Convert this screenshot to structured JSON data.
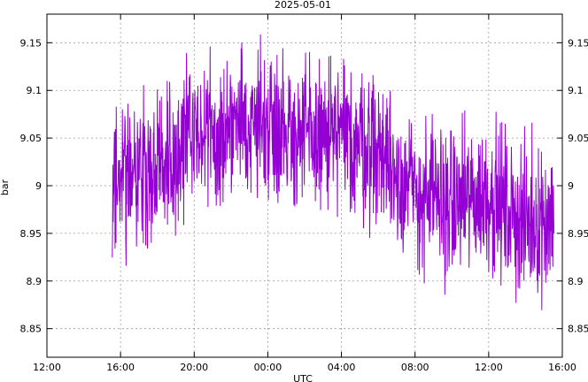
{
  "chart_data": {
    "type": "line",
    "title": "2025-05-01",
    "xlabel": "UTC",
    "ylabel": "bar",
    "x_ticks": [
      "12:00",
      "16:00",
      "20:00",
      "00:00",
      "04:00",
      "08:00",
      "12:00",
      "16:00"
    ],
    "x_tick_hours": [
      12,
      16,
      20,
      24,
      28,
      32,
      36,
      40
    ],
    "xlim_hours": [
      12,
      40
    ],
    "y_ticks": [
      8.85,
      8.9,
      8.95,
      9,
      9.05,
      9.1,
      9.15
    ],
    "y_tick_labels": [
      "8.85",
      "8.9",
      "8.95",
      "9",
      "9.05",
      "9.1",
      "9.15"
    ],
    "ylim": [
      8.82,
      9.18
    ],
    "grid": true,
    "right_axis_labels": true,
    "series": [
      {
        "color": "#9400d3",
        "x_start_hour": 15.55,
        "x_end_hour": 39.55,
        "step_minutes": 1,
        "noise_amplitude": 0.07,
        "trend": [
          [
            15.55,
            9.0
          ],
          [
            18.0,
            9.02
          ],
          [
            20.0,
            9.05
          ],
          [
            22.0,
            9.06
          ],
          [
            24.0,
            9.07
          ],
          [
            26.0,
            9.05
          ],
          [
            28.0,
            9.05
          ],
          [
            30.0,
            9.04
          ],
          [
            32.0,
            8.99
          ],
          [
            34.0,
            8.98
          ],
          [
            36.0,
            8.99
          ],
          [
            38.0,
            8.96
          ],
          [
            39.55,
            8.97
          ]
        ]
      }
    ]
  }
}
